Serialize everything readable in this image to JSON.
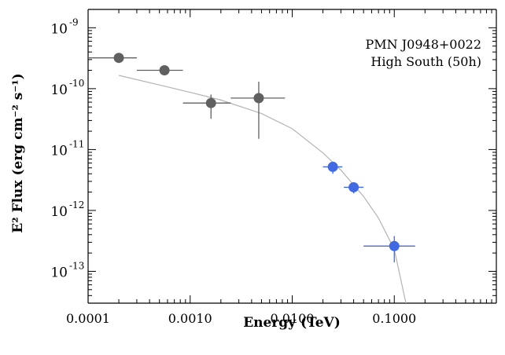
{
  "chart_data": {
    "type": "scatter",
    "title": "",
    "annotation": [
      "PMN J0948+0022",
      "High South (50h)"
    ],
    "xlabel": "Energy (TeV)",
    "ylabel": "E² Flux (erg cm⁻² s⁻¹)",
    "xscale": "log",
    "yscale": "log",
    "xlim": [
      0.0001,
      1.0
    ],
    "ylim": [
      3e-14,
      2e-09
    ],
    "grid": false,
    "x_ticks": [
      {
        "value": 0.0001,
        "label": "0.0001"
      },
      {
        "value": 0.001,
        "label": "0.0010"
      },
      {
        "value": 0.01,
        "label": "0.0100"
      },
      {
        "value": 0.1,
        "label": "0.1000"
      }
    ],
    "y_ticks": [
      {
        "value": 1e-09,
        "base": "10",
        "exp": "-9"
      },
      {
        "value": 1e-10,
        "base": "10",
        "exp": "-10"
      },
      {
        "value": 1e-11,
        "base": "10",
        "exp": "-11"
      },
      {
        "value": 1e-12,
        "base": "10",
        "exp": "-12"
      },
      {
        "value": 1e-13,
        "base": "10",
        "exp": "-13"
      }
    ],
    "series": [
      {
        "color": "#606060",
        "points": [
          {
            "x": 0.0002,
            "y": 3.2e-10,
            "xlo": 0.0001,
            "xhi": 0.0003,
            "ylo": 3.2e-10,
            "yhi": 3.2e-10
          },
          {
            "x": 0.00056,
            "y": 2e-10,
            "xlo": 0.0003,
            "xhi": 0.00085,
            "ylo": 2e-10,
            "yhi": 2e-10
          },
          {
            "x": 0.0016,
            "y": 5.8e-11,
            "xlo": 0.00085,
            "xhi": 0.0025,
            "ylo": 3.2e-11,
            "yhi": 8e-11
          },
          {
            "x": 0.0047,
            "y": 7e-11,
            "xlo": 0.0025,
            "xhi": 0.0085,
            "ylo": 1.5e-11,
            "yhi": 1.3e-10
          }
        ]
      },
      {
        "color": "#4169e1",
        "points": [
          {
            "x": 0.025,
            "y": 5.2e-12,
            "xlo": 0.02,
            "xhi": 0.031,
            "ylo": 4e-12,
            "yhi": 6e-12
          },
          {
            "x": 0.04,
            "y": 2.4e-12,
            "xlo": 0.032,
            "xhi": 0.05,
            "ylo": 1.9e-12,
            "yhi": 2.8e-12
          },
          {
            "x": 0.1,
            "y": 2.6e-13,
            "xlo": 0.05,
            "xhi": 0.16,
            "ylo": 1.4e-13,
            "yhi": 3.8e-13
          }
        ]
      }
    ],
    "model_curve": {
      "color": "#b4b4b4",
      "points": [
        [
          0.0002,
          1.65e-10
        ],
        [
          0.0005,
          1.15e-10
        ],
        [
          0.001,
          8.7e-11
        ],
        [
          0.002,
          6.5e-11
        ],
        [
          0.005,
          3.9e-11
        ],
        [
          0.01,
          2.2e-11
        ],
        [
          0.02,
          8.8e-12
        ],
        [
          0.03,
          4.6e-12
        ],
        [
          0.05,
          1.7e-12
        ],
        [
          0.07,
          7.5e-13
        ],
        [
          0.1,
          2.3e-13
        ],
        [
          0.13,
          3e-14
        ]
      ]
    }
  }
}
